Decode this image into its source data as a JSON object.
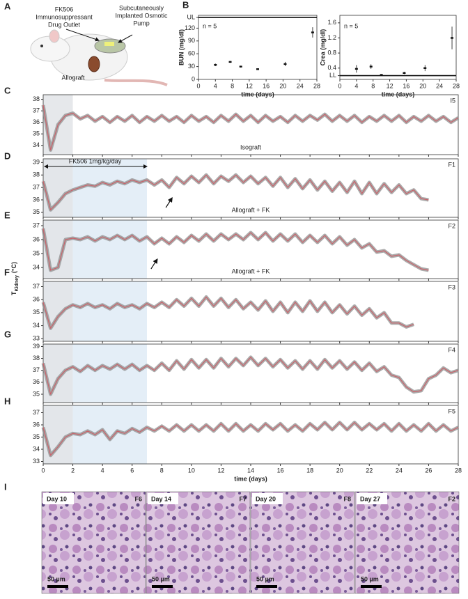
{
  "panel_labels": [
    "A",
    "B",
    "C",
    "D",
    "E",
    "F",
    "G",
    "H",
    "I"
  ],
  "illustration": {
    "drug_outlet": [
      "FK506",
      "Immunosuppressant",
      "Drug Outlet"
    ],
    "pump": [
      "Subcutaneously",
      "Implanted Osmotic",
      "Pump"
    ],
    "allograft": "Allograft"
  },
  "shared_ylabel": {
    "symbol": "T",
    "subscript": "Kidney",
    "unit": "(°C)"
  },
  "histology": [
    {
      "day": "Day 10",
      "id": "F6",
      "scale": "50 µm"
    },
    {
      "day": "Day 14",
      "id": "F7",
      "scale": "50 µm"
    },
    {
      "day": "Day 20",
      "id": "F8",
      "scale": "50 µm"
    },
    {
      "day": "Day 27",
      "id": "F2",
      "scale": "50 µm"
    }
  ],
  "chart_data": [
    {
      "type": "errorbar",
      "ylabel": "BUN (mg/dl)",
      "xlabel": "time (days)",
      "annotation": "n = 5",
      "color": "#111",
      "x": [
        4,
        7.5,
        10,
        14,
        20.5,
        27
      ],
      "values": [
        34,
        41,
        30,
        24,
        36,
        110
      ],
      "errors": [
        3,
        2,
        2,
        2,
        5,
        12
      ],
      "xlim": [
        0,
        28
      ],
      "xticks": [
        0,
        4,
        8,
        12,
        16,
        20,
        24,
        28
      ],
      "xtick_labels": true,
      "ylim": [
        0,
        150
      ],
      "yticks": [
        0,
        30,
        60,
        90,
        120,
        {
          "value": 145,
          "label": "UL"
        }
      ]
    },
    {
      "type": "errorbar",
      "ylabel": "Crea (mg/dl)",
      "xlabel": "time (days)",
      "annotation": "n = 5",
      "color": "#111",
      "x": [
        4,
        7.5,
        10,
        15.5,
        20.5,
        27
      ],
      "values": [
        0.38,
        0.44,
        0.22,
        0.27,
        0.4,
        1.2
      ],
      "errors": [
        0.1,
        0.06,
        0.02,
        0.03,
        0.08,
        0.3
      ],
      "xlim": [
        0,
        28
      ],
      "xticks": [
        0,
        4,
        8,
        12,
        16,
        20,
        24,
        28
      ],
      "xtick_labels": true,
      "ylim": [
        0.1,
        1.8
      ],
      "yticks": [
        {
          "value": 0.2,
          "label": "LL"
        },
        0.4,
        0.8,
        1.2,
        1.6
      ]
    },
    {
      "type": "line",
      "label": "I5",
      "annotation": "Isograft",
      "noise_color": "#8f8f8f",
      "x": [
        0,
        0.5,
        1,
        1.5,
        2,
        2.5,
        3,
        3.5,
        4,
        4.5,
        5,
        5.5,
        6,
        6.5,
        7,
        7.5,
        8,
        8.5,
        9,
        9.5,
        10,
        10.5,
        11,
        11.5,
        12,
        12.5,
        13,
        13.5,
        14,
        14.5,
        15,
        15.5,
        16,
        16.5,
        17,
        17.5,
        18,
        18.5,
        19,
        19.5,
        20,
        20.5,
        21,
        21.5,
        22,
        22.5,
        23,
        23.5,
        24,
        24.5,
        25,
        25.5,
        26,
        26.5,
        27,
        27.5,
        28
      ],
      "series": [
        {
          "color": "#c9626a",
          "values": [
            37.5,
            33.6,
            35.8,
            36.6,
            36.8,
            36.3,
            36.6,
            36.1,
            36.5,
            36.0,
            36.5,
            36.1,
            36.6,
            36.0,
            36.5,
            36.1,
            36.6,
            36.1,
            36.5,
            36.0,
            36.6,
            36.1,
            36.5,
            36.0,
            36.6,
            36.1,
            36.7,
            36.1,
            36.6,
            36.0,
            36.6,
            36.1,
            36.5,
            36.0,
            36.6,
            36.1,
            36.6,
            36.2,
            36.7,
            36.1,
            36.6,
            36.1,
            36.6,
            36.0,
            36.5,
            36.1,
            36.6,
            36.1,
            36.6,
            36.0,
            36.5,
            36.1,
            36.6,
            36.1,
            36.5,
            36.0,
            36.4
          ]
        }
      ],
      "shaded": [
        {
          "xlim": [
            0,
            2
          ],
          "color": "#e6e8eb"
        }
      ],
      "xlim": [
        0,
        28
      ],
      "xticks": [
        0,
        2,
        4,
        6,
        8,
        10,
        12,
        14,
        16,
        18,
        20,
        22,
        24,
        26,
        28
      ],
      "ylim": [
        33.2,
        38.4
      ],
      "yticks": [
        34,
        35,
        36,
        37,
        38
      ]
    },
    {
      "type": "line",
      "label": "F1",
      "annotation": "Allograft + FK",
      "noise_color": "#8f8f8f",
      "range_arrow": {
        "text": "FK506 1mg/kg/day",
        "x": [
          0,
          7
        ]
      },
      "event_arrow_x": 8.7,
      "x": [
        0,
        0.5,
        1,
        1.5,
        2,
        2.5,
        3,
        3.5,
        4,
        4.5,
        5,
        5.5,
        6,
        6.5,
        7,
        7.5,
        8,
        8.5,
        9,
        9.5,
        10,
        10.5,
        11,
        11.5,
        12,
        12.5,
        13,
        13.5,
        14,
        14.5,
        15,
        15.5,
        16,
        16.5,
        17,
        17.5,
        18,
        18.5,
        19,
        19.5,
        20,
        20.5,
        21,
        21.5,
        22,
        22.5,
        23,
        23.5,
        24,
        24.5,
        25,
        25.5,
        26
      ],
      "series": [
        {
          "color": "#c9626a",
          "values": [
            37.5,
            35.2,
            35.8,
            36.5,
            36.8,
            37.0,
            37.2,
            37.1,
            37.4,
            37.2,
            37.5,
            37.3,
            37.6,
            37.4,
            37.6,
            37.2,
            37.6,
            37.0,
            37.8,
            37.3,
            37.9,
            37.4,
            38.0,
            37.3,
            37.9,
            37.5,
            38.0,
            37.4,
            37.9,
            37.3,
            37.8,
            37.1,
            37.8,
            37.0,
            37.7,
            36.9,
            37.6,
            36.8,
            37.5,
            36.7,
            37.4,
            36.6,
            37.5,
            36.5,
            37.4,
            36.5,
            37.3,
            36.6,
            37.2,
            36.5,
            36.8,
            36.1,
            36.0
          ]
        }
      ],
      "shaded": [
        {
          "xlim": [
            0,
            2
          ],
          "color": "#e3e6ea"
        },
        {
          "xlim": [
            2,
            7
          ],
          "color": "#e4eef7"
        }
      ],
      "xlim": [
        0,
        28
      ],
      "xticks": [
        0,
        2,
        4,
        6,
        8,
        10,
        12,
        14,
        16,
        18,
        20,
        22,
        24,
        26,
        28
      ],
      "ylim": [
        34.6,
        39.3
      ],
      "yticks": [
        35,
        36,
        37,
        38,
        39
      ]
    },
    {
      "type": "line",
      "label": "F2",
      "annotation": "Allograft + FK",
      "noise_color": "#8f8f8f",
      "event_arrow_x": 7.7,
      "x": [
        0,
        0.5,
        1,
        1.5,
        2,
        2.5,
        3,
        3.5,
        4,
        4.5,
        5,
        5.5,
        6,
        6.5,
        7,
        7.5,
        8,
        8.5,
        9,
        9.5,
        10,
        10.5,
        11,
        11.5,
        12,
        12.5,
        13,
        13.5,
        14,
        14.5,
        15,
        15.5,
        16,
        16.5,
        17,
        17.5,
        18,
        18.5,
        19,
        19.5,
        20,
        20.5,
        21,
        21.5,
        22,
        22.5,
        23,
        23.5,
        24,
        24.5,
        25,
        25.5,
        26
      ],
      "series": [
        {
          "color": "#c9626a",
          "values": [
            36.8,
            33.8,
            34.0,
            36.0,
            36.1,
            36.0,
            36.2,
            35.9,
            36.2,
            36.0,
            36.3,
            36.0,
            36.3,
            35.9,
            36.2,
            35.7,
            36.1,
            35.7,
            36.2,
            35.8,
            36.3,
            35.9,
            36.4,
            35.9,
            36.4,
            36.0,
            36.4,
            36.0,
            36.5,
            36.0,
            36.5,
            35.9,
            36.4,
            35.9,
            36.4,
            35.8,
            36.3,
            35.8,
            36.3,
            35.7,
            36.2,
            35.6,
            36.0,
            35.4,
            35.7,
            35.1,
            35.2,
            34.8,
            34.9,
            34.5,
            34.2,
            33.9,
            33.8
          ]
        }
      ],
      "shaded": [
        {
          "xlim": [
            0,
            2
          ],
          "color": "#e3e6ea"
        },
        {
          "xlim": [
            2,
            7
          ],
          "color": "#e4eef7"
        }
      ],
      "xlim": [
        0,
        28
      ],
      "xticks": [
        0,
        2,
        4,
        6,
        8,
        10,
        12,
        14,
        16,
        18,
        20,
        22,
        24,
        26,
        28
      ],
      "ylim": [
        33.2,
        37.4
      ],
      "yticks": [
        34,
        35,
        36,
        37
      ]
    },
    {
      "type": "line",
      "label": "F3",
      "noise_color": "#8f8f8f",
      "x": [
        0,
        0.5,
        1,
        1.5,
        2,
        2.5,
        3,
        3.5,
        4,
        4.5,
        5,
        5.5,
        6,
        6.5,
        7,
        7.5,
        8,
        8.5,
        9,
        9.5,
        10,
        10.5,
        11,
        11.5,
        12,
        12.5,
        13,
        13.5,
        14,
        14.5,
        15,
        15.5,
        16,
        16.5,
        17,
        17.5,
        18,
        18.5,
        19,
        19.5,
        20,
        20.5,
        21,
        21.5,
        22,
        22.5,
        23,
        23.5,
        24,
        24.5,
        25
      ],
      "series": [
        {
          "color": "#c9626a",
          "values": [
            35.8,
            33.8,
            34.7,
            35.3,
            35.6,
            35.4,
            35.7,
            35.4,
            35.6,
            35.3,
            35.7,
            35.4,
            35.6,
            35.3,
            35.7,
            35.4,
            35.8,
            35.4,
            36.0,
            35.5,
            36.1,
            35.5,
            36.2,
            35.5,
            36.1,
            35.4,
            36.0,
            35.3,
            35.8,
            35.2,
            35.9,
            35.1,
            35.8,
            35.0,
            35.8,
            35.1,
            35.9,
            35.1,
            35.8,
            35.0,
            35.6,
            34.9,
            35.5,
            34.8,
            35.3,
            34.6,
            35.0,
            34.2,
            34.2,
            33.9,
            34.1
          ]
        }
      ],
      "shaded": [
        {
          "xlim": [
            0,
            2
          ],
          "color": "#e3e6ea"
        },
        {
          "xlim": [
            2,
            7
          ],
          "color": "#e4eef7"
        }
      ],
      "xlim": [
        0,
        28
      ],
      "xticks": [
        0,
        2,
        4,
        6,
        8,
        10,
        12,
        14,
        16,
        18,
        20,
        22,
        24,
        26,
        28
      ],
      "ylim": [
        32.8,
        37.4
      ],
      "yticks": [
        33,
        34,
        35,
        36,
        37
      ]
    },
    {
      "type": "line",
      "label": "F4",
      "noise_color": "#8f8f8f",
      "x": [
        0,
        0.5,
        1,
        1.5,
        2,
        2.5,
        3,
        3.5,
        4,
        4.5,
        5,
        5.5,
        6,
        6.5,
        7,
        7.5,
        8,
        8.5,
        9,
        9.5,
        10,
        10.5,
        11,
        11.5,
        12,
        12.5,
        13,
        13.5,
        14,
        14.5,
        15,
        15.5,
        16,
        16.5,
        17,
        17.5,
        18,
        18.5,
        19,
        19.5,
        20,
        20.5,
        21,
        21.5,
        22,
        22.5,
        23,
        23.5,
        24,
        24.5,
        25,
        25.5,
        26,
        26.5,
        27,
        27.5,
        28
      ],
      "series": [
        {
          "color": "#c9626a",
          "values": [
            37.6,
            35.0,
            36.3,
            37.0,
            37.3,
            36.9,
            37.4,
            37.0,
            37.4,
            37.1,
            37.5,
            37.1,
            37.5,
            37.0,
            37.4,
            37.0,
            37.6,
            37.0,
            37.8,
            37.1,
            37.9,
            37.2,
            37.9,
            37.2,
            38.0,
            37.3,
            38.0,
            37.4,
            38.1,
            37.4,
            38.0,
            37.3,
            37.9,
            37.2,
            37.8,
            37.1,
            37.8,
            37.1,
            37.9,
            37.2,
            37.8,
            37.1,
            37.7,
            37.0,
            37.6,
            36.9,
            37.3,
            36.6,
            36.4,
            35.6,
            35.2,
            35.3,
            36.3,
            36.6,
            37.2,
            36.8,
            37.0
          ]
        }
      ],
      "shaded": [
        {
          "xlim": [
            0,
            2
          ],
          "color": "#e3e6ea"
        },
        {
          "xlim": [
            2,
            7
          ],
          "color": "#e4eef7"
        }
      ],
      "xlim": [
        0,
        28
      ],
      "xticks": [
        0,
        2,
        4,
        6,
        8,
        10,
        12,
        14,
        16,
        18,
        20,
        22,
        24,
        26,
        28
      ],
      "ylim": [
        34.3,
        39.2
      ],
      "yticks": [
        35,
        36,
        37,
        38,
        39
      ]
    },
    {
      "type": "line",
      "label": "F5",
      "noise_color": "#8f8f8f",
      "xlabel": "time (days)",
      "xtick_labels": true,
      "x": [
        0,
        0.5,
        1,
        1.5,
        2,
        2.5,
        3,
        3.5,
        4,
        4.5,
        5,
        5.5,
        6,
        6.5,
        7,
        7.5,
        8,
        8.5,
        9,
        9.5,
        10,
        10.5,
        11,
        11.5,
        12,
        12.5,
        13,
        13.5,
        14,
        14.5,
        15,
        15.5,
        16,
        16.5,
        17,
        17.5,
        18,
        18.5,
        19,
        19.5,
        20,
        20.5,
        21,
        21.5,
        22,
        22.5,
        23,
        23.5,
        24,
        24.5,
        25,
        25.5,
        26,
        26.5,
        27,
        27.5,
        28
      ],
      "series": [
        {
          "color": "#c9626a",
          "values": [
            35.8,
            33.5,
            34.2,
            35.0,
            35.3,
            35.2,
            35.5,
            35.2,
            35.6,
            34.8,
            35.5,
            35.3,
            35.7,
            35.4,
            35.8,
            35.5,
            35.9,
            35.5,
            36.0,
            35.5,
            36.0,
            35.5,
            36.0,
            35.5,
            36.1,
            35.5,
            36.1,
            35.5,
            36.0,
            35.5,
            36.1,
            35.6,
            36.1,
            35.5,
            36.0,
            35.5,
            36.1,
            35.6,
            36.2,
            35.6,
            36.2,
            35.6,
            36.2,
            35.6,
            36.1,
            35.6,
            36.1,
            35.5,
            36.1,
            35.5,
            36.0,
            35.5,
            36.1,
            35.5,
            36.0,
            35.5,
            35.8
          ]
        }
      ],
      "shaded": [
        {
          "xlim": [
            0,
            2
          ],
          "color": "#e3e6ea"
        },
        {
          "xlim": [
            2,
            7
          ],
          "color": "#e4eef7"
        }
      ],
      "xlim": [
        0,
        28
      ],
      "xticks": [
        0,
        2,
        4,
        6,
        8,
        10,
        12,
        14,
        16,
        18,
        20,
        22,
        24,
        26,
        28
      ],
      "ylim": [
        32.8,
        37.6
      ],
      "yticks": [
        33,
        34,
        35,
        36,
        37
      ]
    }
  ]
}
